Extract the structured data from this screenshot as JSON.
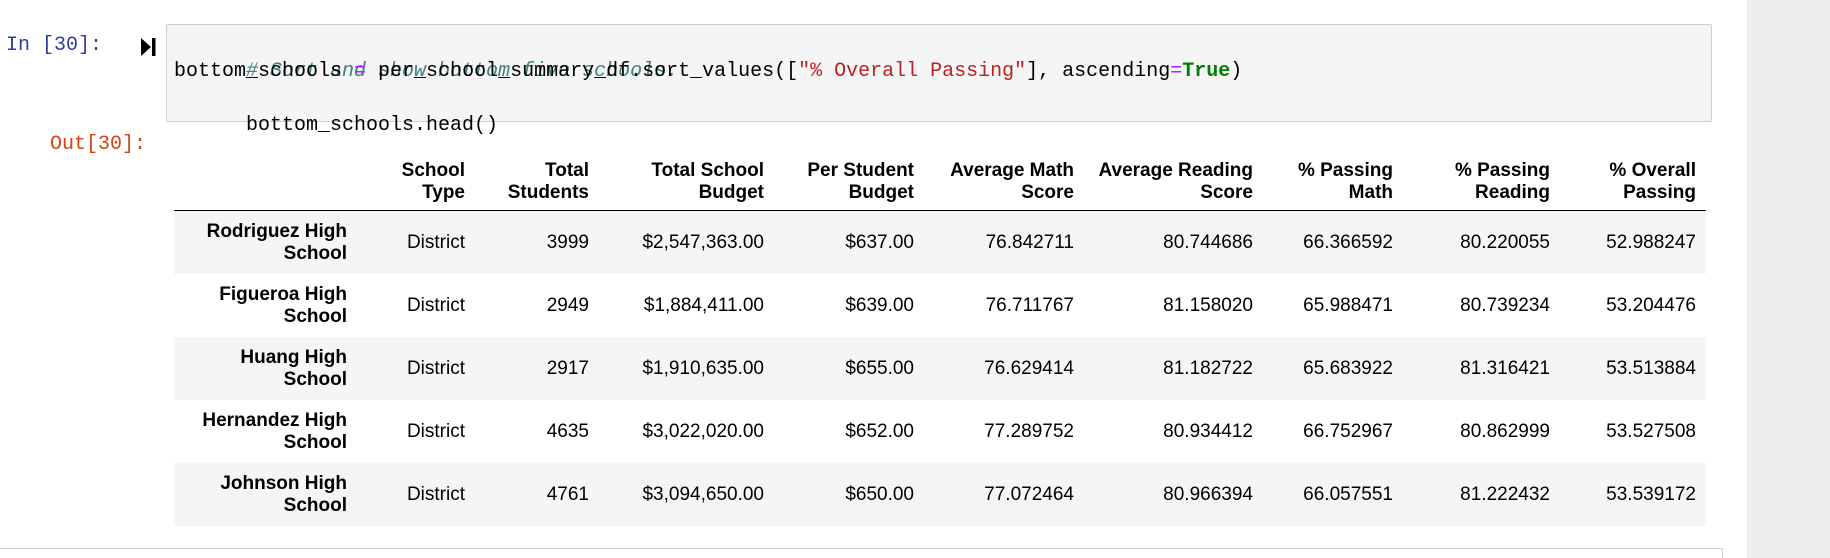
{
  "input_cell": {
    "prompt": "In [30]:",
    "code": {
      "comment": "# Sort and show bottom five schools.",
      "line2_var": "bottom_schools ",
      "line2_eq": "=",
      "line2_mid": " per_school_summary_df.sort_values([",
      "line2_str": "\"% Overall Passing\"",
      "line2_mid2": "], ascending",
      "line2_eq2": "=",
      "line2_kw": "True",
      "line2_end": ")",
      "line3": "bottom_schools.head()"
    },
    "run_icon": "run-cell-icon"
  },
  "output_cell": {
    "prompt": "Out[30]:",
    "table": {
      "columns": [
        [
          "School",
          "Type"
        ],
        [
          "Total",
          "Students"
        ],
        [
          "Total School",
          "Budget"
        ],
        [
          "Per Student",
          "Budget"
        ],
        [
          "Average Math",
          "Score"
        ],
        [
          "Average Reading",
          "Score"
        ],
        [
          "% Passing",
          "Math"
        ],
        [
          "% Passing",
          "Reading"
        ],
        [
          "% Overall",
          "Passing"
        ]
      ],
      "rows": [
        {
          "index": [
            "Rodriguez High",
            "School"
          ],
          "values": [
            "District",
            "3999",
            "$2,547,363.00",
            "$637.00",
            "76.842711",
            "80.744686",
            "66.366592",
            "80.220055",
            "52.988247"
          ]
        },
        {
          "index": [
            "Figueroa High",
            "School"
          ],
          "values": [
            "District",
            "2949",
            "$1,884,411.00",
            "$639.00",
            "76.711767",
            "81.158020",
            "65.988471",
            "80.739234",
            "53.204476"
          ]
        },
        {
          "index": [
            "Huang High",
            "School"
          ],
          "values": [
            "District",
            "2917",
            "$1,910,635.00",
            "$655.00",
            "76.629414",
            "81.182722",
            "65.683922",
            "81.316421",
            "53.513884"
          ]
        },
        {
          "index": [
            "Hernandez High",
            "School"
          ],
          "values": [
            "District",
            "4635",
            "$3,022,020.00",
            "$652.00",
            "77.289752",
            "80.934412",
            "66.752967",
            "80.862999",
            "53.527508"
          ]
        },
        {
          "index": [
            "Johnson High",
            "School"
          ],
          "values": [
            "District",
            "4761",
            "$3,094,650.00",
            "$650.00",
            "77.072464",
            "80.966394",
            "66.057551",
            "81.222432",
            "53.539172"
          ]
        }
      ]
    }
  }
}
